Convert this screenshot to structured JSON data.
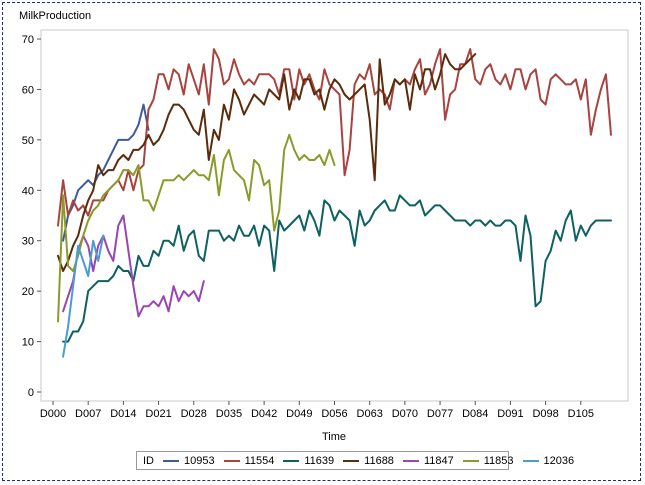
{
  "chart_data": {
    "type": "line",
    "title": "MilkProduction",
    "xlabel": "Time",
    "ylabel": "",
    "ylim": [
      0,
      70
    ],
    "yticks": [
      0,
      10,
      20,
      30,
      40,
      50,
      60,
      70
    ],
    "xlim": [
      0,
      112
    ],
    "xticks": [
      {
        "value": 0,
        "label": "D000"
      },
      {
        "value": 7,
        "label": "D007"
      },
      {
        "value": 14,
        "label": "D014"
      },
      {
        "value": 21,
        "label": "D021"
      },
      {
        "value": 28,
        "label": "D028"
      },
      {
        "value": 35,
        "label": "D035"
      },
      {
        "value": 42,
        "label": "D042"
      },
      {
        "value": 49,
        "label": "D049"
      },
      {
        "value": 56,
        "label": "D056"
      },
      {
        "value": 63,
        "label": "D063"
      },
      {
        "value": 70,
        "label": "D070"
      },
      {
        "value": 77,
        "label": "D077"
      },
      {
        "value": 84,
        "label": "D084"
      },
      {
        "value": 91,
        "label": "D091"
      },
      {
        "value": 98,
        "label": "D098"
      },
      {
        "value": 105,
        "label": "D105"
      }
    ],
    "grid": false,
    "legend_position": "bottom",
    "legend_title": "ID",
    "series": [
      {
        "name": "10953",
        "color": "#3d5a9e",
        "x": [
          2,
          3,
          4,
          5,
          6,
          7,
          8,
          9,
          10,
          11,
          12,
          13,
          14,
          15,
          16,
          17,
          18,
          19
        ],
        "y": [
          30,
          35,
          37,
          40,
          41,
          42,
          41,
          43,
          44,
          46,
          48,
          50,
          50,
          50,
          51,
          53,
          57,
          52
        ]
      },
      {
        "name": "11554",
        "color": "#a8433f",
        "x": [
          1,
          2,
          3,
          4,
          5,
          6,
          7,
          8,
          9,
          10,
          11,
          12,
          13,
          14,
          15,
          16,
          17,
          18,
          19,
          20,
          21,
          22,
          23,
          24,
          25,
          26,
          27,
          28,
          29,
          30,
          31,
          32,
          33,
          34,
          35,
          36,
          37,
          38,
          39,
          40,
          41,
          42,
          43,
          44,
          45,
          46,
          47,
          48,
          49,
          50,
          51,
          52,
          53,
          54,
          55,
          56,
          57,
          58,
          59,
          60,
          61,
          62,
          63,
          64,
          65,
          66,
          67,
          68,
          69,
          70,
          71,
          72,
          73,
          74,
          75,
          76,
          77,
          78,
          79,
          80,
          81,
          82,
          83,
          84,
          85,
          86,
          87,
          88,
          89,
          90,
          91,
          92,
          93,
          94,
          95,
          96,
          97,
          98,
          99,
          100,
          101,
          102,
          103,
          104,
          105,
          106,
          107,
          108,
          109,
          110,
          111
        ],
        "y": [
          33,
          42,
          35,
          38,
          36,
          37,
          35,
          38,
          38,
          38,
          40,
          41,
          42,
          40,
          44,
          40,
          44,
          45,
          56,
          58,
          63,
          63,
          60,
          64,
          63,
          59,
          65,
          62,
          59,
          65,
          57,
          68,
          66,
          61,
          62,
          66,
          63,
          61,
          62,
          61,
          63,
          63,
          63,
          62,
          59,
          64,
          64,
          58,
          64,
          61,
          63,
          60,
          58,
          64,
          61,
          60,
          59,
          43,
          48,
          61,
          63,
          62,
          65,
          59,
          60,
          59,
          56,
          62,
          61,
          62,
          61,
          64,
          66,
          59,
          61,
          65,
          68,
          54,
          59,
          60,
          65,
          65,
          68,
          62,
          61,
          64,
          65,
          62,
          61,
          63,
          60,
          64,
          64,
          60,
          63,
          64,
          58,
          57,
          62,
          63,
          62,
          61,
          61,
          62,
          58,
          62,
          51,
          56,
          60,
          63,
          51
        ]
      },
      {
        "name": "11639",
        "color": "#0f6161",
        "x": [
          2,
          3,
          4,
          5,
          6,
          7,
          8,
          9,
          10,
          11,
          12,
          13,
          14,
          15,
          16,
          17,
          18,
          19,
          20,
          21,
          22,
          23,
          24,
          25,
          26,
          27,
          28,
          29,
          30,
          31,
          32,
          33,
          34,
          35,
          36,
          37,
          38,
          39,
          40,
          41,
          42,
          43,
          44,
          45,
          46,
          47,
          48,
          49,
          50,
          51,
          52,
          53,
          54,
          55,
          56,
          57,
          58,
          59,
          60,
          61,
          62,
          63,
          64,
          65,
          66,
          67,
          68,
          69,
          70,
          71,
          72,
          73,
          74,
          75,
          76,
          77,
          78,
          79,
          80,
          81,
          82,
          83,
          84,
          85,
          86,
          87,
          88,
          89,
          90,
          91,
          92,
          93,
          94,
          95,
          96,
          97,
          98,
          99,
          100,
          101,
          102,
          103,
          104,
          105,
          106,
          107,
          108,
          109,
          110,
          111
        ],
        "y": [
          10,
          10,
          12,
          12,
          14,
          20,
          21,
          22,
          22,
          22,
          23,
          25,
          24,
          24,
          22,
          27,
          25,
          25,
          28,
          27,
          30,
          30,
          29,
          33,
          28,
          31,
          32,
          27,
          26,
          32,
          32,
          32,
          30,
          31,
          30,
          33,
          31,
          31,
          33,
          29,
          33,
          32,
          24,
          34,
          32,
          33,
          34,
          35,
          32,
          36,
          34,
          31,
          38,
          37,
          34,
          36,
          35,
          34,
          29,
          36,
          33,
          34,
          36,
          37,
          38,
          36,
          36,
          39,
          38,
          37,
          37,
          38,
          35,
          36,
          37,
          37,
          36,
          35,
          34,
          34,
          34,
          33,
          34,
          34,
          33,
          34,
          33,
          33,
          34,
          34,
          33,
          26,
          35,
          31,
          17,
          18,
          26,
          28,
          32,
          30,
          34,
          36,
          30,
          33,
          31,
          33,
          34,
          34,
          34,
          34
        ]
      },
      {
        "name": "11688",
        "color": "#5a2c0c",
        "x": [
          1,
          2,
          3,
          4,
          5,
          6,
          7,
          8,
          9,
          10,
          11,
          12,
          13,
          14,
          15,
          16,
          17,
          18,
          19,
          20,
          21,
          22,
          23,
          24,
          25,
          26,
          27,
          28,
          29,
          30,
          31,
          32,
          33,
          34,
          35,
          36,
          37,
          38,
          39,
          40,
          41,
          42,
          43,
          44,
          45,
          46,
          47,
          48,
          49,
          50,
          51,
          52,
          53,
          54,
          55,
          56,
          57,
          58,
          59,
          60,
          61,
          62,
          63,
          64,
          65,
          66,
          67,
          68,
          69,
          70,
          71,
          72,
          73,
          74,
          75,
          76,
          77,
          78,
          79,
          80,
          81,
          82,
          83,
          84
        ],
        "y": [
          27,
          24,
          26,
          29,
          31,
          35,
          38,
          40,
          45,
          43,
          44,
          44,
          46,
          47,
          46,
          48,
          48,
          49,
          51,
          49,
          50,
          52,
          55,
          57,
          57,
          56,
          54,
          52,
          51,
          56,
          46,
          52,
          50,
          57,
          54,
          60,
          58,
          55,
          57,
          59,
          58,
          57,
          60,
          59,
          58,
          63,
          56,
          60,
          58,
          62,
          62,
          59,
          60,
          56,
          60,
          62,
          61,
          59,
          58,
          59,
          60,
          61,
          54,
          42,
          66,
          57,
          59,
          62,
          61,
          62,
          56,
          63,
          60,
          64,
          64,
          60,
          63,
          67,
          65,
          64,
          64,
          65,
          66,
          67
        ]
      },
      {
        "name": "11847",
        "color": "#9b44b4",
        "x": [
          2,
          3,
          4,
          5,
          6,
          7,
          8,
          9,
          10,
          11,
          12,
          13,
          14,
          15,
          16,
          17,
          18,
          19,
          20,
          21,
          22,
          23,
          24,
          25,
          26,
          27,
          28,
          29,
          30
        ],
        "y": [
          16,
          19,
          22,
          28,
          31,
          29,
          24,
          29,
          31,
          28,
          26,
          33,
          35,
          28,
          21,
          15,
          17,
          17,
          18,
          17,
          19,
          16,
          21,
          18,
          20,
          19,
          20,
          18,
          22
        ]
      },
      {
        "name": "11853",
        "color": "#8b9b2a",
        "x": [
          1,
          2,
          3,
          4,
          5,
          6,
          7,
          8,
          9,
          10,
          11,
          12,
          13,
          14,
          15,
          16,
          17,
          18,
          19,
          20,
          21,
          22,
          23,
          24,
          25,
          26,
          27,
          28,
          29,
          30,
          31,
          32,
          33,
          34,
          35,
          36,
          37,
          38,
          39,
          40,
          41,
          42,
          43,
          44,
          45,
          46,
          47,
          48,
          49,
          50,
          51,
          52,
          53,
          54,
          55,
          56
        ],
        "y": [
          14,
          39,
          25,
          24,
          27,
          31,
          34,
          36,
          37,
          39,
          40,
          41,
          42,
          44,
          44,
          43,
          45,
          38,
          38,
          36,
          39,
          42,
          42,
          42,
          43,
          42,
          43,
          44,
          43,
          43,
          42,
          47,
          39,
          46,
          48,
          44,
          43,
          42,
          38,
          46,
          45,
          41,
          42,
          32,
          36,
          48,
          51,
          48,
          46,
          47,
          46,
          46,
          47,
          45,
          48,
          45
        ]
      },
      {
        "name": "12036",
        "color": "#4a9cd0",
        "x": [
          2,
          3,
          4,
          5,
          6,
          7,
          8,
          9,
          10
        ],
        "y": [
          7,
          13,
          21,
          29,
          26,
          23,
          30,
          26,
          31
        ]
      }
    ]
  }
}
